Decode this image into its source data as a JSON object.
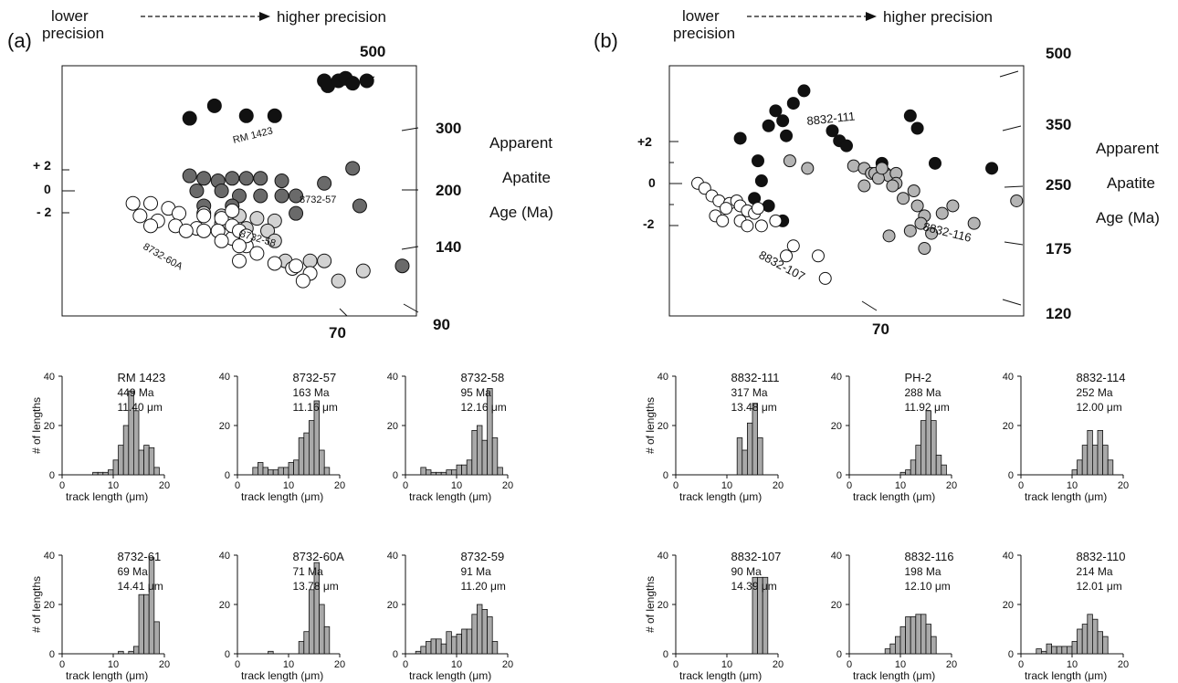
{
  "figure": {
    "panel_labels": [
      "(a)",
      "(b)"
    ],
    "precision_left": "lower",
    "precision_left_2": "precision",
    "precision_right": "higher precision",
    "right_axis_labels": [
      "Apparent",
      "Apatite",
      "Age (Ma)"
    ],
    "hist_ylabel": "# of lengths",
    "hist_xlabel": "track length (μm)"
  },
  "chart_data": [
    {
      "type": "scatter",
      "panel": "a",
      "age_ticks": [
        "500",
        "300",
        "200",
        "140",
        "90",
        "70"
      ],
      "z_ticks": [
        "+ 2",
        "0",
        "- 2"
      ],
      "annotations": [
        "RM 1423",
        "8732-57",
        "8732-58",
        "8732-60A"
      ],
      "series": [
        {
          "name": "RM 1423",
          "fill": "#111111",
          "points": [
            [
              0.36,
              0.21
            ],
            [
              0.52,
              0.2
            ],
            [
              0.74,
              0.06
            ],
            [
              0.75,
              0.08
            ],
            [
              0.78,
              0.06
            ],
            [
              0.8,
              0.05
            ],
            [
              0.82,
              0.07
            ],
            [
              0.86,
              0.06
            ],
            [
              0.6,
              0.2
            ],
            [
              0.43,
              0.16
            ]
          ]
        },
        {
          "name": "8732-57",
          "fill": "#6a6a6a",
          "points": [
            [
              0.36,
              0.44
            ],
            [
              0.4,
              0.45
            ],
            [
              0.44,
              0.46
            ],
            [
              0.48,
              0.45
            ],
            [
              0.52,
              0.45
            ],
            [
              0.56,
              0.45
            ],
            [
              0.62,
              0.46
            ],
            [
              0.38,
              0.5
            ],
            [
              0.45,
              0.5
            ],
            [
              0.5,
              0.52
            ],
            [
              0.56,
              0.52
            ],
            [
              0.62,
              0.52
            ],
            [
              0.66,
              0.52
            ],
            [
              0.74,
              0.47
            ],
            [
              0.82,
              0.41
            ],
            [
              0.84,
              0.56
            ],
            [
              0.48,
              0.56
            ],
            [
              0.4,
              0.56
            ],
            [
              0.66,
              0.59
            ],
            [
              0.96,
              0.8
            ]
          ]
        },
        {
          "name": "8732-58",
          "fill": "#d2d2d2",
          "points": [
            [
              0.4,
              0.59
            ],
            [
              0.45,
              0.6
            ],
            [
              0.5,
              0.6
            ],
            [
              0.55,
              0.61
            ],
            [
              0.6,
              0.62
            ],
            [
              0.45,
              0.63
            ],
            [
              0.52,
              0.65
            ],
            [
              0.58,
              0.66
            ],
            [
              0.6,
              0.7
            ],
            [
              0.7,
              0.78
            ],
            [
              0.78,
              0.86
            ],
            [
              0.85,
              0.82
            ],
            [
              0.63,
              0.78
            ],
            [
              0.74,
              0.78
            ]
          ]
        },
        {
          "name": "8732-60A",
          "fill": "#ffffff",
          "points": [
            [
              0.2,
              0.55
            ],
            [
              0.25,
              0.55
            ],
            [
              0.3,
              0.57
            ],
            [
              0.33,
              0.59
            ],
            [
              0.4,
              0.6
            ],
            [
              0.45,
              0.61
            ],
            [
              0.48,
              0.58
            ],
            [
              0.22,
              0.6
            ],
            [
              0.27,
              0.62
            ],
            [
              0.32,
              0.64
            ],
            [
              0.38,
              0.65
            ],
            [
              0.44,
              0.66
            ],
            [
              0.48,
              0.69
            ],
            [
              0.52,
              0.72
            ],
            [
              0.35,
              0.66
            ],
            [
              0.48,
              0.64
            ],
            [
              0.5,
              0.66
            ],
            [
              0.52,
              0.68
            ],
            [
              0.4,
              0.66
            ],
            [
              0.45,
              0.7
            ],
            [
              0.5,
              0.72
            ],
            [
              0.55,
              0.75
            ],
            [
              0.6,
              0.79
            ],
            [
              0.65,
              0.81
            ],
            [
              0.7,
              0.83
            ],
            [
              0.68,
              0.86
            ],
            [
              0.66,
              0.8
            ],
            [
              0.5,
              0.78
            ],
            [
              0.25,
              0.64
            ]
          ]
        }
      ]
    },
    {
      "type": "scatter",
      "panel": "b",
      "age_ticks": [
        "500",
        "350",
        "250",
        "175",
        "120",
        "70"
      ],
      "z_ticks": [
        "+2",
        "0",
        "-2"
      ],
      "annotations": [
        "8832-111",
        "8832-116",
        "8832-107"
      ],
      "series": [
        {
          "name": "8832-111",
          "fill": "#111111",
          "points": [
            [
              0.2,
              0.29
            ],
            [
              0.25,
              0.38
            ],
            [
              0.26,
              0.46
            ],
            [
              0.28,
              0.24
            ],
            [
              0.3,
              0.18
            ],
            [
              0.32,
              0.22
            ],
            [
              0.35,
              0.15
            ],
            [
              0.38,
              0.1
            ],
            [
              0.33,
              0.28
            ],
            [
              0.46,
              0.26
            ],
            [
              0.48,
              0.3
            ],
            [
              0.5,
              0.32
            ],
            [
              0.6,
              0.39
            ],
            [
              0.68,
              0.2
            ],
            [
              0.7,
              0.25
            ],
            [
              0.75,
              0.39
            ],
            [
              0.91,
              0.41
            ],
            [
              0.24,
              0.53
            ],
            [
              0.28,
              0.56
            ],
            [
              0.32,
              0.62
            ]
          ]
        },
        {
          "name": "8832-116",
          "fill": "#b4b4b4",
          "points": [
            [
              0.34,
              0.38
            ],
            [
              0.39,
              0.41
            ],
            [
              0.52,
              0.4
            ],
            [
              0.55,
              0.41
            ],
            [
              0.57,
              0.43
            ],
            [
              0.58,
              0.43
            ],
            [
              0.61,
              0.43
            ],
            [
              0.62,
              0.44
            ],
            [
              0.59,
              0.45
            ],
            [
              0.6,
              0.41
            ],
            [
              0.64,
              0.43
            ],
            [
              0.64,
              0.47
            ],
            [
              0.69,
              0.5
            ],
            [
              0.66,
              0.53
            ],
            [
              0.7,
              0.56
            ],
            [
              0.72,
              0.6
            ],
            [
              0.71,
              0.63
            ],
            [
              0.68,
              0.66
            ],
            [
              0.62,
              0.68
            ],
            [
              0.77,
              0.59
            ],
            [
              0.8,
              0.56
            ],
            [
              0.63,
              0.48
            ],
            [
              0.55,
              0.48
            ],
            [
              0.86,
              0.63
            ],
            [
              0.98,
              0.54
            ],
            [
              0.74,
              0.67
            ],
            [
              0.72,
              0.73
            ]
          ]
        },
        {
          "name": "8832-107",
          "fill": "#ffffff",
          "points": [
            [
              0.08,
              0.47
            ],
            [
              0.1,
              0.49
            ],
            [
              0.12,
              0.52
            ],
            [
              0.14,
              0.54
            ],
            [
              0.17,
              0.55
            ],
            [
              0.19,
              0.54
            ],
            [
              0.16,
              0.57
            ],
            [
              0.2,
              0.56
            ],
            [
              0.22,
              0.58
            ],
            [
              0.24,
              0.59
            ],
            [
              0.13,
              0.6
            ],
            [
              0.15,
              0.62
            ],
            [
              0.2,
              0.62
            ],
            [
              0.22,
              0.64
            ],
            [
              0.26,
              0.64
            ],
            [
              0.25,
              0.57
            ],
            [
              0.35,
              0.72
            ],
            [
              0.33,
              0.76
            ],
            [
              0.42,
              0.76
            ],
            [
              0.44,
              0.85
            ],
            [
              0.3,
              0.62
            ]
          ]
        }
      ]
    },
    {
      "type": "bar",
      "panel": "a",
      "histograms": [
        {
          "name": "RM 1423",
          "age": "449 Ma",
          "mean": "11.40 μm",
          "bins_from": 0,
          "values": [
            0,
            0,
            0,
            0,
            0,
            0,
            1,
            1,
            1,
            2,
            6,
            12,
            20,
            34,
            26,
            10,
            12,
            11,
            3,
            0,
            0
          ]
        },
        {
          "name": "8732-57",
          "age": "163 Ma",
          "mean": "11.16 μm",
          "bins_from": 0,
          "values": [
            0,
            0,
            0,
            3,
            5,
            3,
            2,
            2,
            3,
            3,
            5,
            6,
            15,
            17,
            22,
            30,
            10,
            3,
            0,
            0,
            0
          ]
        },
        {
          "name": "8732-58",
          "age": "95 Ma",
          "mean": "12.16 μm",
          "bins_from": 0,
          "values": [
            0,
            0,
            0,
            3,
            2,
            1,
            1,
            1,
            2,
            2,
            4,
            4,
            6,
            18,
            20,
            14,
            35,
            15,
            3,
            0,
            0
          ]
        },
        {
          "name": "8732-61",
          "age": "69 Ma",
          "mean": "14.41 μm",
          "bins_from": 0,
          "values": [
            0,
            0,
            0,
            0,
            0,
            0,
            0,
            0,
            0,
            0,
            0,
            1,
            0,
            1,
            3,
            24,
            24,
            39,
            13,
            0,
            0
          ]
        },
        {
          "name": "8732-60A",
          "age": "71 Ma",
          "mean": "13.78 μm",
          "bins_from": 0,
          "values": [
            0,
            0,
            0,
            0,
            0,
            0,
            1,
            0,
            0,
            0,
            0,
            0,
            5,
            9,
            26,
            37,
            20,
            11,
            0,
            0,
            0
          ]
        },
        {
          "name": "8732-59",
          "age": "91 Ma",
          "mean": "11.20 μm",
          "bins_from": 0,
          "values": [
            0,
            0,
            1,
            3,
            5,
            6,
            6,
            4,
            9,
            7,
            8,
            10,
            10,
            16,
            20,
            18,
            15,
            5,
            0,
            0,
            0
          ]
        }
      ]
    },
    {
      "type": "bar",
      "panel": "b",
      "histograms": [
        {
          "name": "8832-111",
          "age": "317 Ma",
          "mean": "13.48 μm",
          "bins_from": 0,
          "values": [
            0,
            0,
            0,
            0,
            0,
            0,
            0,
            0,
            0,
            0,
            0,
            0,
            15,
            10,
            21,
            29,
            15,
            0,
            0,
            0,
            0
          ]
        },
        {
          "name": "PH-2",
          "age": "288 Ma",
          "mean": "11.92 μm",
          "bins_from": 0,
          "values": [
            0,
            0,
            0,
            0,
            0,
            0,
            0,
            0,
            0,
            0,
            1,
            2,
            6,
            12,
            22,
            26,
            22,
            8,
            4,
            0,
            0
          ]
        },
        {
          "name": "8832-114",
          "age": "252 Ma",
          "mean": "12.00 μm",
          "bins_from": 0,
          "values": [
            0,
            0,
            0,
            0,
            0,
            0,
            0,
            0,
            0,
            0,
            2,
            6,
            12,
            18,
            12,
            18,
            12,
            6,
            0,
            0,
            0
          ]
        },
        {
          "name": "8832-107",
          "age": "90 Ma",
          "mean": "14.39 μm",
          "bins_from": 0,
          "values": [
            0,
            0,
            0,
            0,
            0,
            0,
            0,
            0,
            0,
            0,
            0,
            0,
            0,
            0,
            0,
            31,
            31,
            31,
            0,
            0,
            0
          ]
        },
        {
          "name": "8832-116",
          "age": "198 Ma",
          "mean": "12.10 μm",
          "bins_from": 0,
          "values": [
            0,
            0,
            0,
            0,
            0,
            0,
            0,
            2,
            4,
            7,
            11,
            15,
            15,
            16,
            16,
            12,
            7,
            0,
            0,
            0,
            0
          ]
        },
        {
          "name": "8832-110",
          "age": "214 Ma",
          "mean": "12.01 μm",
          "bins_from": 0,
          "values": [
            0,
            0,
            0,
            2,
            1,
            4,
            3,
            3,
            3,
            3,
            5,
            10,
            12,
            16,
            14,
            9,
            7,
            0,
            0,
            0,
            0
          ]
        }
      ]
    }
  ]
}
